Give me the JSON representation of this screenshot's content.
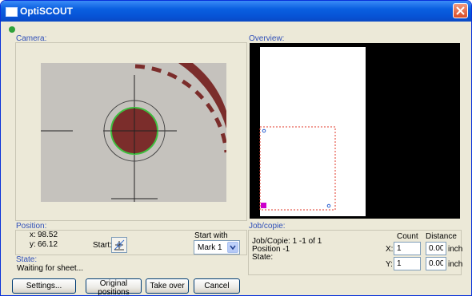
{
  "window": {
    "title": "OptiSCOUT"
  },
  "icons": {
    "app": "window-icon",
    "close": "close-x-icon",
    "status": "green-status-dot",
    "start": "crosshair-start-icon",
    "dropdown": "chevron-down-icon"
  },
  "colors": {
    "status_dot": "#2ea23a",
    "group_label": "#2f4fb8",
    "mark_circle": "#7b2d2b",
    "mark_ring": "#3fbf3f",
    "sheet_frame": "#e03a2a",
    "origin_marker": "#cc00cc"
  },
  "camera": {
    "label": "Camera:"
  },
  "overview": {
    "label": "Overview:"
  },
  "position": {
    "label": "Position:",
    "x_label": "x:",
    "x_value": "98.52",
    "y_label": "y:",
    "y_value": "66.12"
  },
  "start": {
    "label": "Start:"
  },
  "start_with": {
    "label": "Start with",
    "selected": "Mark 1"
  },
  "state": {
    "label": "State:",
    "text": "Waiting for sheet..."
  },
  "job": {
    "label": "Job/copie:",
    "line1": "Job/Copie: 1 -1 of 1",
    "line2": "Position -1",
    "line3": "State:",
    "count_header": "Count",
    "distance_header": "Distance",
    "x_label": "X:",
    "x_count": "1",
    "x_distance": "0.00",
    "x_unit": "inch",
    "y_label": "Y:",
    "y_count": "1",
    "y_distance": "0.00",
    "y_unit": "inch"
  },
  "buttons": {
    "settings": "Settings...",
    "original_positions": "Original positions",
    "take_over": "Take over",
    "cancel": "Cancel"
  }
}
